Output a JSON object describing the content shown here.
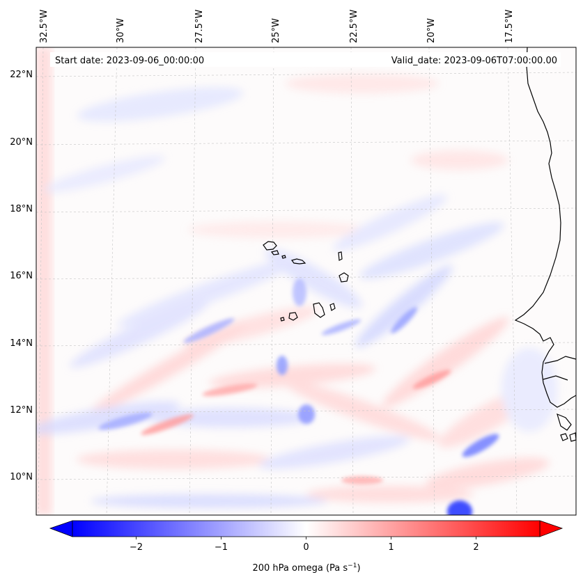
{
  "map": {
    "start_label": "Start date: 2023-09-06_00:00:00",
    "valid_label": "Valid_date: 2023-09-06T07:00:00.00",
    "lon_labels": [
      "32.5°W",
      "30°W",
      "27.5°W",
      "25°W",
      "22.5°W",
      "20°W",
      "17.5°W"
    ],
    "lat_labels": [
      "22°N",
      "20°N",
      "18°N",
      "16°N",
      "14°N",
      "12°N",
      "10°N"
    ],
    "field": "200 hPa omega",
    "coastline_color": "#000000",
    "gridline_color": "#b0b0b0"
  },
  "colorbar": {
    "label_prefix": "200 hPa omega (Pa s",
    "label_exponent": "−1",
    "label_suffix": ")",
    "ticks": [
      "−2",
      "−1",
      "0",
      "1",
      "2"
    ],
    "tick_values": [
      -2,
      -1,
      0,
      1,
      2
    ],
    "vmin": -2.75,
    "vmax": 2.75,
    "extend": "both",
    "colormap": "bwr",
    "color_min": "#0000ff",
    "color_mid": "#ffffff",
    "color_max": "#ff0000"
  }
}
